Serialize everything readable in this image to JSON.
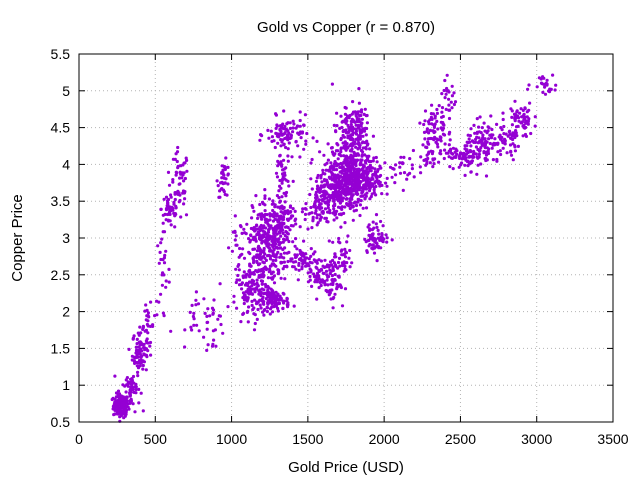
{
  "chart_data": {
    "type": "scatter",
    "title": "Gold vs Copper (r = 0.870)",
    "xlabel": "Gold Price (USD)",
    "ylabel": "Copper Price",
    "xlim": [
      0,
      3500
    ],
    "ylim": [
      0.5,
      5.5
    ],
    "xticks": [
      0,
      500,
      1000,
      1500,
      2000,
      2500,
      3000,
      3500
    ],
    "yticks": [
      0.5,
      1,
      1.5,
      2,
      2.5,
      3,
      3.5,
      4,
      4.5,
      5,
      5.5
    ],
    "xtick_labels": [
      "0",
      "500",
      "1000",
      "1500",
      "2000",
      "2500",
      "3000",
      "3500"
    ],
    "ytick_labels": [
      "0.5",
      "1",
      "1.5",
      "2",
      "2.5",
      "3",
      "3.5",
      "4",
      "4.5",
      "5",
      "5.5"
    ],
    "grid": true,
    "marker_color": "#9400d3",
    "clusters": [
      {
        "cx": 275,
        "cy": 0.72,
        "sx": 25,
        "sy": 0.08,
        "n": 140
      },
      {
        "cx": 340,
        "cy": 0.95,
        "sx": 30,
        "sy": 0.15,
        "n": 60
      },
      {
        "cx": 400,
        "cy": 1.45,
        "sx": 25,
        "sy": 0.15,
        "n": 80
      },
      {
        "cx": 450,
        "cy": 1.8,
        "sx": 20,
        "sy": 0.15,
        "n": 25
      },
      {
        "cx": 545,
        "cy": 2.5,
        "sx": 25,
        "sy": 0.3,
        "n": 30
      },
      {
        "cx": 600,
        "cy": 3.4,
        "sx": 30,
        "sy": 0.15,
        "n": 50
      },
      {
        "cx": 660,
        "cy": 3.7,
        "sx": 30,
        "sy": 0.25,
        "n": 50
      },
      {
        "cx": 760,
        "cy": 1.9,
        "sx": 30,
        "sy": 0.15,
        "n": 15
      },
      {
        "cx": 880,
        "cy": 1.9,
        "sx": 40,
        "sy": 0.25,
        "n": 30
      },
      {
        "cx": 950,
        "cy": 3.8,
        "sx": 20,
        "sy": 0.12,
        "n": 35
      },
      {
        "cx": 1050,
        "cy": 2.85,
        "sx": 30,
        "sy": 0.2,
        "n": 25
      },
      {
        "cx": 1120,
        "cy": 2.2,
        "sx": 50,
        "sy": 0.2,
        "n": 80
      },
      {
        "cx": 1180,
        "cy": 2.75,
        "sx": 60,
        "sy": 0.3,
        "n": 150
      },
      {
        "cx": 1260,
        "cy": 3.0,
        "sx": 60,
        "sy": 0.3,
        "n": 240
      },
      {
        "cx": 1280,
        "cy": 2.15,
        "sx": 50,
        "sy": 0.07,
        "n": 100
      },
      {
        "cx": 1340,
        "cy": 3.2,
        "sx": 40,
        "sy": 0.15,
        "n": 80
      },
      {
        "cx": 1370,
        "cy": 4.4,
        "sx": 70,
        "sy": 0.12,
        "n": 100
      },
      {
        "cx": 1330,
        "cy": 3.85,
        "sx": 25,
        "sy": 0.2,
        "n": 40
      },
      {
        "cx": 1460,
        "cy": 2.7,
        "sx": 40,
        "sy": 0.1,
        "n": 50
      },
      {
        "cx": 1570,
        "cy": 2.55,
        "sx": 50,
        "sy": 0.1,
        "n": 60
      },
      {
        "cx": 1660,
        "cy": 2.4,
        "sx": 40,
        "sy": 0.15,
        "n": 50
      },
      {
        "cx": 1560,
        "cy": 3.4,
        "sx": 40,
        "sy": 0.15,
        "n": 80
      },
      {
        "cx": 1650,
        "cy": 3.7,
        "sx": 50,
        "sy": 0.2,
        "n": 150
      },
      {
        "cx": 1780,
        "cy": 3.75,
        "sx": 60,
        "sy": 0.2,
        "n": 300
      },
      {
        "cx": 1780,
        "cy": 4.2,
        "sx": 60,
        "sy": 0.25,
        "n": 220
      },
      {
        "cx": 1820,
        "cy": 4.6,
        "sx": 40,
        "sy": 0.12,
        "n": 60
      },
      {
        "cx": 1900,
        "cy": 3.8,
        "sx": 50,
        "sy": 0.12,
        "n": 120
      },
      {
        "cx": 1950,
        "cy": 3.0,
        "sx": 40,
        "sy": 0.1,
        "n": 70
      },
      {
        "cx": 1720,
        "cy": 2.75,
        "sx": 40,
        "sy": 0.15,
        "n": 40
      },
      {
        "cx": 2100,
        "cy": 3.95,
        "sx": 40,
        "sy": 0.1,
        "n": 25
      },
      {
        "cx": 2280,
        "cy": 4.1,
        "sx": 30,
        "sy": 0.1,
        "n": 20
      },
      {
        "cx": 2330,
        "cy": 4.45,
        "sx": 40,
        "sy": 0.2,
        "n": 80
      },
      {
        "cx": 2420,
        "cy": 4.9,
        "sx": 30,
        "sy": 0.15,
        "n": 25
      },
      {
        "cx": 2500,
        "cy": 4.1,
        "sx": 50,
        "sy": 0.08,
        "n": 60
      },
      {
        "cx": 2650,
        "cy": 4.25,
        "sx": 60,
        "sy": 0.15,
        "n": 120
      },
      {
        "cx": 2800,
        "cy": 4.3,
        "sx": 50,
        "sy": 0.12,
        "n": 50
      },
      {
        "cx": 2900,
        "cy": 4.6,
        "sx": 40,
        "sy": 0.12,
        "n": 60
      },
      {
        "cx": 3050,
        "cy": 5.1,
        "sx": 40,
        "sy": 0.07,
        "n": 25
      }
    ]
  }
}
